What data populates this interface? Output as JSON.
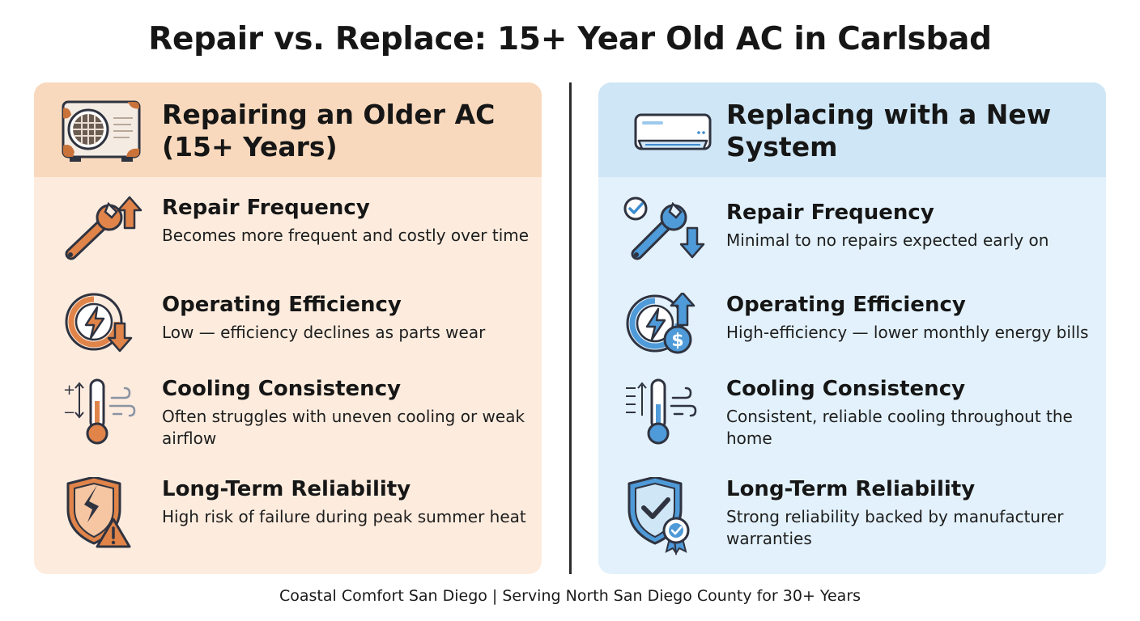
{
  "title": "Repair vs. Replace: 15+ Year Old AC in Carlsbad",
  "colors": {
    "left_accent": "#d9763e",
    "left_panel": "#fdecde",
    "left_header": "#f9d9bd",
    "right_accent": "#3d8ccf",
    "right_panel": "#e2f1fb",
    "right_header": "#cfe6f6",
    "outline": "#2f3340"
  },
  "left": {
    "title": "Repairing an Older AC (15+ Years)",
    "header_icon": "rusty-outdoor-ac-unit-icon",
    "rows": [
      {
        "icon": "wrench-arrow-up-icon",
        "heading": "Repair Frequency",
        "desc": "Becomes more frequent and costly over time"
      },
      {
        "icon": "lightning-arrow-down-icon",
        "heading": "Operating Efficiency",
        "desc": "Low — efficiency declines as parts wear"
      },
      {
        "icon": "thermometer-warm-icon",
        "heading": "Cooling Consistency",
        "desc": "Often struggles with uneven cooling or weak airflow"
      },
      {
        "icon": "cracked-shield-warning-icon",
        "heading": "Long-Term Reliability",
        "desc": "High risk of failure during peak summer heat"
      }
    ]
  },
  "right": {
    "title": "Replacing with a New System",
    "header_icon": "wall-mounted-ac-unit-icon",
    "rows": [
      {
        "icon": "wrench-check-arrow-down-icon",
        "heading": "Repair Frequency",
        "desc": "Minimal to no repairs expected early on"
      },
      {
        "icon": "lightning-dollar-arrow-up-icon",
        "heading": "Operating Efficiency",
        "desc": "High-efficiency — lower monthly energy bills"
      },
      {
        "icon": "thermometer-cool-icon",
        "heading": "Cooling Consistency",
        "desc": "Consistent, reliable cooling throughout the home"
      },
      {
        "icon": "shield-check-badge-icon",
        "heading": "Long-Term Reliability",
        "desc": "Strong reliability backed by manufacturer warranties"
      }
    ]
  },
  "footer": "Coastal Comfort San Diego | Serving North San Diego County for 30+ Years"
}
